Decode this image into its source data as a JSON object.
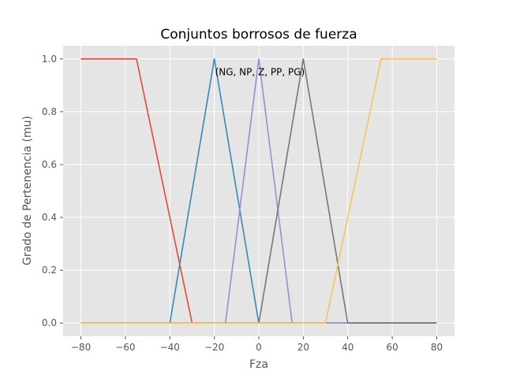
{
  "chart_data": {
    "type": "line",
    "title": "Conjuntos borrosos de fuerza",
    "xlabel": "Fza",
    "ylabel": "Grado de Pertenencia (mu)",
    "xlim": [
      -88,
      88
    ],
    "ylim": [
      -0.05,
      1.05
    ],
    "xticks": [
      -80,
      -60,
      -40,
      -20,
      0,
      20,
      40,
      60,
      80
    ],
    "yticks": [
      0.0,
      0.2,
      0.4,
      0.6,
      0.8,
      1.0
    ],
    "xtick_labels": [
      "−80",
      "−60",
      "−40",
      "−20",
      "0",
      "20",
      "40",
      "60",
      "80"
    ],
    "ytick_labels": [
      "0.0",
      "0.2",
      "0.4",
      "0.6",
      "0.8",
      "1.0"
    ],
    "grid": true,
    "background": "#e5e5e5",
    "annotation": {
      "text": "(NG, NP, Z, PP, PG)",
      "x": 0.5,
      "y": 0.95
    },
    "series": [
      {
        "color": "#e24a33",
        "x": [
          -80,
          -55,
          -30,
          80
        ],
        "y": [
          1,
          1,
          0,
          0
        ]
      },
      {
        "color": "#348abd",
        "x": [
          -80,
          -40,
          -20,
          0,
          80
        ],
        "y": [
          0,
          0,
          1,
          0,
          0
        ]
      },
      {
        "color": "#988ed5",
        "x": [
          -80,
          -15,
          0,
          15,
          80
        ],
        "y": [
          0,
          0,
          1,
          0,
          0
        ]
      },
      {
        "color": "#777777",
        "x": [
          -80,
          0,
          20,
          40,
          80
        ],
        "y": [
          0,
          0,
          1,
          0,
          0
        ]
      },
      {
        "color": "#fbc15e",
        "x": [
          -80,
          30,
          55,
          80
        ],
        "y": [
          0,
          0,
          1,
          1
        ]
      }
    ]
  }
}
